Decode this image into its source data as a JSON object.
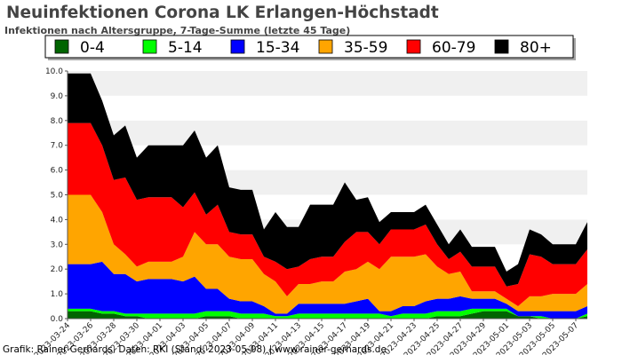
{
  "chart_data": {
    "type": "area",
    "stacked": true,
    "title": "Neuinfektionen Corona LK Erlangen-Höchstadt",
    "subtitle": "Infektionen nach Altersgruppe, 7-Tage-Summe (letzte 45 Tage)",
    "footer": "Grafik: Rainer Gerhards, Daten: RKI (Stand: 2023-05-08) | www.rainer-gerhards.de",
    "xlabel": "",
    "ylabel": "",
    "ylim": [
      0,
      10
    ],
    "yticks": [
      "0.0",
      "1.0",
      "2.0",
      "3.0",
      "4.0",
      "5.0",
      "6.0",
      "7.0",
      "8.0",
      "9.0",
      "10.0"
    ],
    "grid": "alternating horizontal bands",
    "legend_position": "top",
    "x": [
      "2023-03-24",
      "2023-03-25",
      "2023-03-26",
      "2023-03-27",
      "2023-03-28",
      "2023-03-29",
      "2023-03-30",
      "2023-03-31",
      "2023-04-01",
      "2023-04-02",
      "2023-04-03",
      "2023-04-04",
      "2023-04-05",
      "2023-04-06",
      "2023-04-07",
      "2023-04-08",
      "2023-04-09",
      "2023-04-10",
      "2023-04-11",
      "2023-04-12",
      "2023-04-13",
      "2023-04-14",
      "2023-04-15",
      "2023-04-16",
      "2023-04-17",
      "2023-04-18",
      "2023-04-19",
      "2023-04-20",
      "2023-04-21",
      "2023-04-22",
      "2023-04-23",
      "2023-04-24",
      "2023-04-25",
      "2023-04-26",
      "2023-04-27",
      "2023-04-28",
      "2023-04-29",
      "2023-04-30",
      "2023-05-01",
      "2023-05-02",
      "2023-05-03",
      "2023-05-04",
      "2023-05-05",
      "2023-05-06",
      "2023-05-07",
      "2023-05-08"
    ],
    "x_tick_labels": [
      "2023-03-24",
      "2023-03-26",
      "2023-03-28",
      "2023-03-30",
      "2023-04-01",
      "2023-04-03",
      "2023-04-05",
      "2023-04-07",
      "2023-04-09",
      "2023-04-11",
      "2023-04-13",
      "2023-04-15",
      "2023-04-17",
      "2023-04-19",
      "2023-04-21",
      "2023-04-23",
      "2023-04-25",
      "2023-04-27",
      "2023-04-29",
      "2023-05-01",
      "2023-05-03",
      "2023-05-05",
      "2023-05-07"
    ],
    "series": [
      {
        "name": "0-4",
        "color": "#006400",
        "values": [
          0.3,
          0.3,
          0.3,
          0.2,
          0.2,
          0.1,
          0.1,
          0,
          0,
          0,
          0,
          0,
          0.1,
          0.1,
          0.1,
          0,
          0,
          0,
          0,
          0,
          0,
          0,
          0,
          0,
          0,
          0,
          0,
          0,
          0,
          0,
          0,
          0,
          0.1,
          0.1,
          0.1,
          0.2,
          0.3,
          0.3,
          0.3,
          0.1,
          0.1,
          0,
          0,
          0,
          0,
          0.1
        ]
      },
      {
        "name": "5-14",
        "color": "#00ff00",
        "values": [
          0.1,
          0.1,
          0.1,
          0.1,
          0.1,
          0.1,
          0.1,
          0.2,
          0.2,
          0.2,
          0.2,
          0.2,
          0.2,
          0.2,
          0.2,
          0.2,
          0.2,
          0.2,
          0.1,
          0.1,
          0.2,
          0.2,
          0.2,
          0.2,
          0.2,
          0.2,
          0.2,
          0.2,
          0.1,
          0.2,
          0.2,
          0.2,
          0.2,
          0.2,
          0.2,
          0.2,
          0.1,
          0.1,
          0.1,
          0,
          0,
          0.1,
          0,
          0,
          0,
          0.1
        ]
      },
      {
        "name": "15-34",
        "color": "#0000ff",
        "values": [
          1.8,
          1.8,
          1.8,
          2.0,
          1.5,
          1.6,
          1.3,
          1.4,
          1.4,
          1.4,
          1.3,
          1.5,
          0.9,
          0.9,
          0.5,
          0.5,
          0.5,
          0.3,
          0.1,
          0.1,
          0.4,
          0.4,
          0.4,
          0.4,
          0.4,
          0.5,
          0.6,
          0.1,
          0.2,
          0.3,
          0.3,
          0.5,
          0.5,
          0.5,
          0.6,
          0.4,
          0.4,
          0.4,
          0.2,
          0.2,
          0.2,
          0.2,
          0.3,
          0.3,
          0.3,
          0.3
        ]
      },
      {
        "name": "35-59",
        "color": "#ffa500",
        "values": [
          2.8,
          2.8,
          2.8,
          2.0,
          1.2,
          0.8,
          0.6,
          0.7,
          0.7,
          0.7,
          1.0,
          1.8,
          1.8,
          1.8,
          1.7,
          1.7,
          1.7,
          1.3,
          1.3,
          0.7,
          0.8,
          0.8,
          0.9,
          0.9,
          1.3,
          1.3,
          1.5,
          1.7,
          2.2,
          2.0,
          2.0,
          1.9,
          1.3,
          1.0,
          1.0,
          0.3,
          0.3,
          0.3,
          0.2,
          0.2,
          0.6,
          0.6,
          0.7,
          0.7,
          0.7,
          0.9
        ]
      },
      {
        "name": "60-79",
        "color": "#ff0000",
        "values": [
          2.9,
          2.9,
          2.9,
          2.7,
          2.6,
          3.1,
          2.7,
          2.6,
          2.6,
          2.6,
          2.0,
          1.6,
          1.2,
          1.6,
          1.0,
          1.0,
          1.0,
          0.7,
          0.8,
          1.1,
          0.7,
          1.0,
          1.0,
          1.0,
          1.2,
          1.5,
          1.2,
          1.0,
          1.1,
          1.1,
          1.1,
          1.2,
          0.9,
          0.6,
          0.8,
          1.0,
          1.0,
          1.0,
          0.5,
          0.9,
          1.7,
          1.6,
          1.2,
          1.2,
          1.2,
          1.4
        ]
      },
      {
        "name": "80+",
        "color": "#000000",
        "values": [
          2.0,
          2.0,
          2.0,
          1.8,
          1.8,
          2.1,
          1.7,
          2.1,
          2.1,
          2.1,
          2.5,
          2.5,
          2.3,
          2.4,
          1.8,
          1.8,
          1.8,
          1.1,
          2.0,
          1.7,
          1.6,
          2.2,
          2.1,
          2.1,
          2.4,
          1.3,
          1.4,
          0.9,
          0.7,
          0.7,
          0.7,
          0.8,
          0.8,
          0.6,
          0.9,
          0.8,
          0.8,
          0.8,
          0.6,
          0.8,
          1.0,
          0.9,
          0.8,
          0.8,
          0.8,
          1.1
        ]
      }
    ]
  }
}
